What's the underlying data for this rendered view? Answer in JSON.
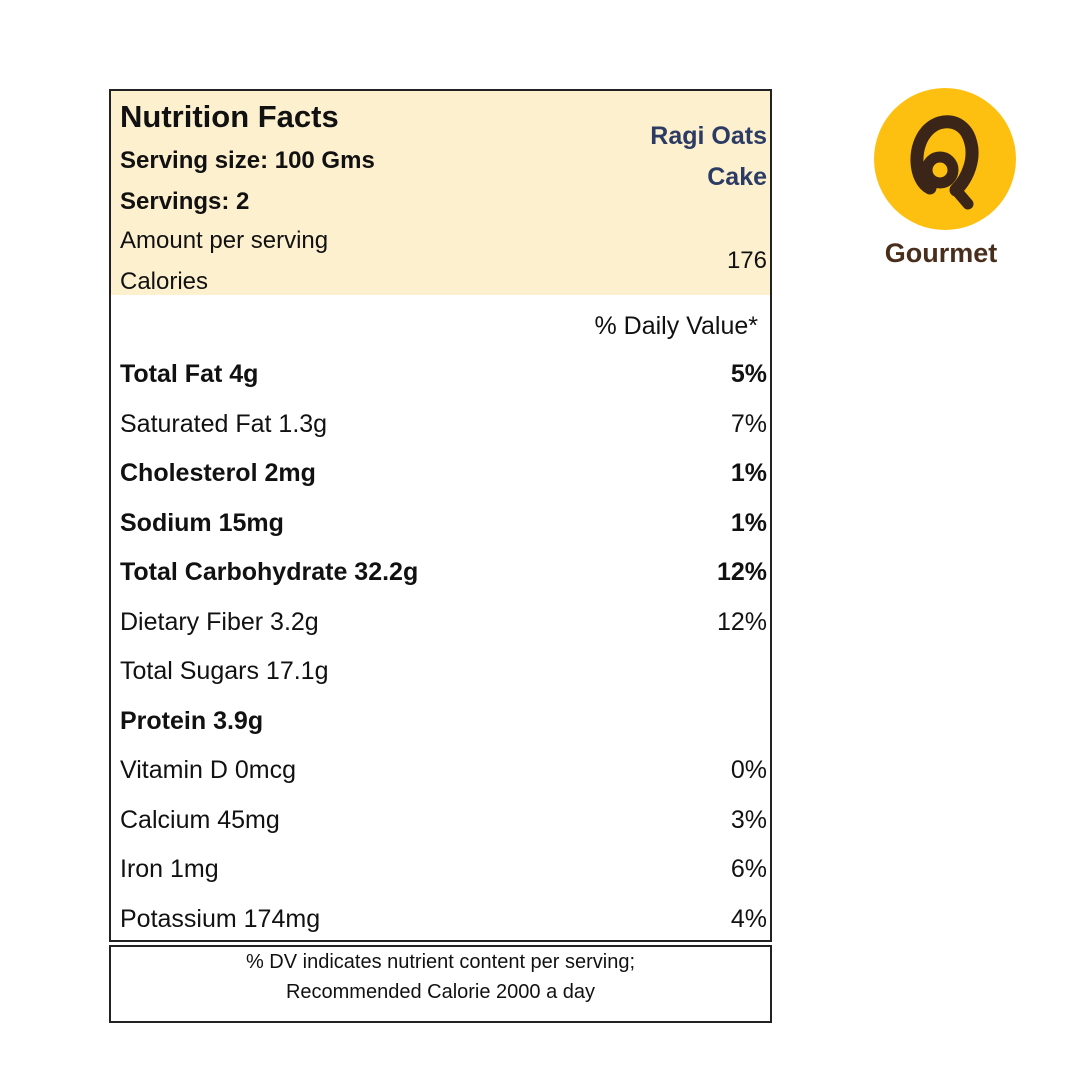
{
  "label": {
    "title": "Nutrition Facts",
    "serving_size": "Serving size: 100 Gms",
    "servings": "Servings: 2",
    "amount_per_serving": "Amount per serving",
    "calories_label": "Calories",
    "calories_value": "176",
    "product_line1": "Ragi Oats",
    "product_line2": "Cake",
    "dv_header": "% Daily Value*",
    "rows": [
      {
        "name": "Total Fat 4g",
        "dv": "5%",
        "bold": true
      },
      {
        "name": "Saturated Fat 1.3g",
        "dv": "7%",
        "bold": false
      },
      {
        "name": "Cholesterol 2mg",
        "dv": "1%",
        "bold": true
      },
      {
        "name": "Sodium 15mg",
        "dv": "1%",
        "bold": true
      },
      {
        "name": "Total Carbohydrate 32.2g",
        "dv": "12%",
        "bold": true
      },
      {
        "name": "Dietary Fiber 3.2g",
        "dv": "12%",
        "bold": false
      },
      {
        "name": "Total Sugars 17.1g",
        "dv": "",
        "bold": false
      },
      {
        "name": "Protein 3.9g",
        "dv": "",
        "bold": true
      },
      {
        "name": "Vitamin D 0mcg",
        "dv": "0%",
        "bold": false
      },
      {
        "name": "Calcium 45mg",
        "dv": "3%",
        "bold": false
      },
      {
        "name": "Iron 1mg",
        "dv": "6%",
        "bold": false
      },
      {
        "name": "Potassium 174mg",
        "dv": "4%",
        "bold": false
      }
    ],
    "footnote_line1": "% DV indicates nutrient content per serving;",
    "footnote_line2": "Recommended Calorie 2000 a day"
  },
  "logo": {
    "brand": "Gourmet",
    "icon": "brand-monogram-icon",
    "circle_color": "#fdc010",
    "mark_color": "#3b2418"
  }
}
